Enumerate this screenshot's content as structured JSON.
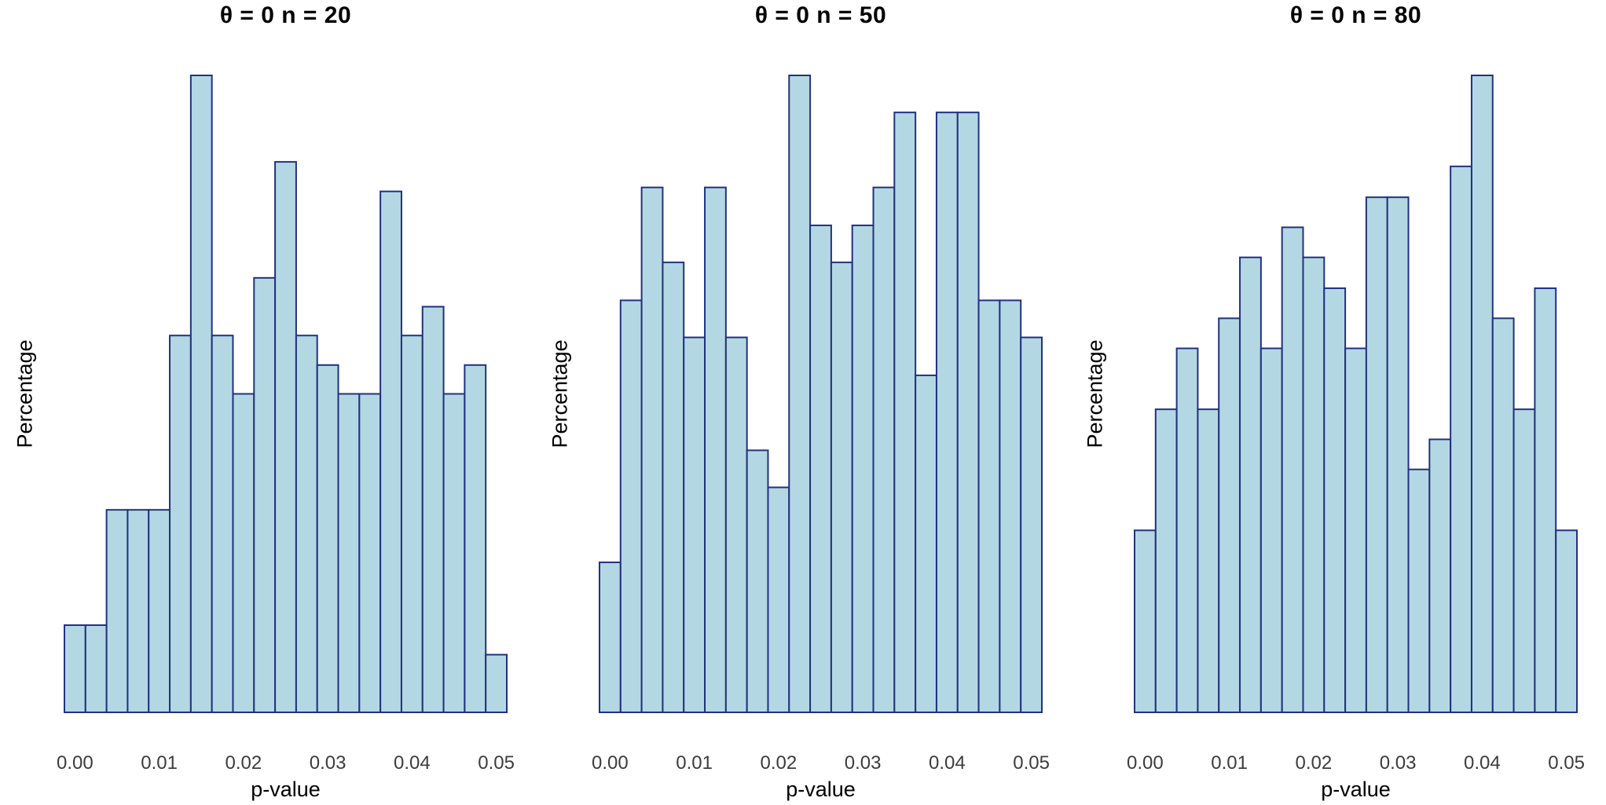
{
  "figure": {
    "background": "#ffffff",
    "bar_fill": "#b4d8e3",
    "bar_border": "#22317f",
    "tick_label_color": "#3c3c3c",
    "text_color": "#000000"
  },
  "chart_data": [
    {
      "type": "bar",
      "title": "θ = 0 n = 20",
      "xlabel": "p-value",
      "ylabel": "Percentage",
      "grid": false,
      "legend": "none",
      "bin_width": 0.0025,
      "xlim": [
        -0.00125,
        0.05125
      ],
      "ylim": [
        0,
        9.3
      ],
      "bin_centers": [
        0.0,
        0.0025,
        0.005,
        0.0075,
        0.01,
        0.0125,
        0.015,
        0.0175,
        0.02,
        0.0225,
        0.025,
        0.0275,
        0.03,
        0.0325,
        0.035,
        0.0375,
        0.04,
        0.0425,
        0.045,
        0.0475,
        0.05
      ],
      "values": [
        1.27,
        1.27,
        2.95,
        2.95,
        2.95,
        5.49,
        9.28,
        5.49,
        4.64,
        6.33,
        8.02,
        5.49,
        5.06,
        4.64,
        4.64,
        7.59,
        5.49,
        5.91,
        4.64,
        5.06,
        0.84
      ],
      "x_ticks": [
        {
          "value": 0.0,
          "label": "0.00"
        },
        {
          "value": 0.01,
          "label": "0.01"
        },
        {
          "value": 0.02,
          "label": "0.02"
        },
        {
          "value": 0.03,
          "label": "0.03"
        },
        {
          "value": 0.04,
          "label": "0.04"
        },
        {
          "value": 0.05,
          "label": "0.05"
        }
      ]
    },
    {
      "type": "bar",
      "title": "θ = 0 n = 50",
      "xlabel": "p-value",
      "ylabel": "Percentage",
      "grid": false,
      "legend": "none",
      "bin_width": 0.0025,
      "xlim": [
        -0.00125,
        0.05125
      ],
      "ylim": [
        0,
        7.1
      ],
      "bin_centers": [
        0.0,
        0.0025,
        0.005,
        0.0075,
        0.01,
        0.0125,
        0.015,
        0.0175,
        0.02,
        0.0225,
        0.025,
        0.0275,
        0.03,
        0.0325,
        0.035,
        0.0375,
        0.04,
        0.0425,
        0.045,
        0.0475,
        0.05
      ],
      "values": [
        1.66,
        4.56,
        5.81,
        4.98,
        4.15,
        5.81,
        4.15,
        2.9,
        2.49,
        7.05,
        5.39,
        4.98,
        5.39,
        5.81,
        6.64,
        3.73,
        6.64,
        6.64,
        4.56,
        4.56,
        4.15
      ],
      "x_ticks": [
        {
          "value": 0.0,
          "label": "0.00"
        },
        {
          "value": 0.01,
          "label": "0.01"
        },
        {
          "value": 0.02,
          "label": "0.02"
        },
        {
          "value": 0.03,
          "label": "0.03"
        },
        {
          "value": 0.04,
          "label": "0.04"
        },
        {
          "value": 0.05,
          "label": "0.05"
        }
      ]
    },
    {
      "type": "bar",
      "title": "θ = 0 n = 80",
      "xlabel": "p-value",
      "ylabel": "Percentage",
      "grid": false,
      "legend": "none",
      "bin_width": 0.0025,
      "xlim": [
        -0.00125,
        0.05125
      ],
      "ylim": [
        0,
        7.9
      ],
      "bin_centers": [
        0.0,
        0.0025,
        0.005,
        0.0075,
        0.01,
        0.0125,
        0.015,
        0.0175,
        0.02,
        0.0225,
        0.025,
        0.0275,
        0.03,
        0.0325,
        0.035,
        0.0375,
        0.04,
        0.0425,
        0.045,
        0.0475,
        0.05
      ],
      "values": [
        2.24,
        3.73,
        4.48,
        3.73,
        4.85,
        5.6,
        4.48,
        5.97,
        5.6,
        5.22,
        4.48,
        6.34,
        6.34,
        2.99,
        3.36,
        6.72,
        7.84,
        4.85,
        3.73,
        5.22,
        2.24
      ],
      "x_ticks": [
        {
          "value": 0.0,
          "label": "0.00"
        },
        {
          "value": 0.01,
          "label": "0.01"
        },
        {
          "value": 0.02,
          "label": "0.02"
        },
        {
          "value": 0.03,
          "label": "0.03"
        },
        {
          "value": 0.04,
          "label": "0.04"
        },
        {
          "value": 0.05,
          "label": "0.05"
        }
      ]
    }
  ]
}
